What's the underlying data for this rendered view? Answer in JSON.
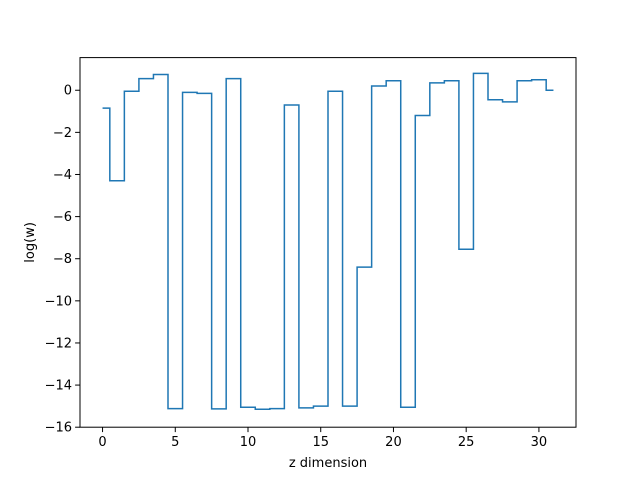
{
  "chart_data": {
    "type": "line",
    "drawstyle": "steps-mid",
    "title": "",
    "xlabel": "z dimension",
    "ylabel": "log(w)",
    "xlim": [
      -1.55,
      32.55
    ],
    "ylim": [
      -16,
      1.55
    ],
    "xticks": [
      0,
      5,
      10,
      15,
      20,
      25,
      30
    ],
    "xtick_labels": [
      "0",
      "5",
      "10",
      "15",
      "20",
      "25",
      "30"
    ],
    "yticks": [
      -16,
      -14,
      -12,
      -10,
      -8,
      -6,
      -4,
      -2,
      0
    ],
    "ytick_labels": [
      "−16",
      "−14",
      "−12",
      "−10",
      "−8",
      "−6",
      "−4",
      "−2",
      "0"
    ],
    "grid": false,
    "legend": "none",
    "series": [
      {
        "color": "#1f77b4",
        "x": [
          0,
          1,
          2,
          3,
          4,
          5,
          6,
          7,
          8,
          9,
          10,
          11,
          12,
          13,
          14,
          15,
          16,
          17,
          18,
          19,
          20,
          21,
          22,
          23,
          24,
          25,
          26,
          27,
          28,
          29,
          30,
          31
        ],
        "y": [
          -0.85,
          -4.3,
          -0.05,
          0.55,
          0.75,
          -15.12,
          -0.1,
          -0.15,
          -15.13,
          0.55,
          -15.05,
          -15.15,
          -15.12,
          -0.7,
          -15.08,
          -15.0,
          -0.05,
          -15.0,
          -8.4,
          0.2,
          0.45,
          -15.05,
          -1.2,
          0.35,
          0.45,
          -7.55,
          0.8,
          -0.45,
          -0.55,
          0.45,
          0.5,
          0.0
        ]
      }
    ]
  }
}
